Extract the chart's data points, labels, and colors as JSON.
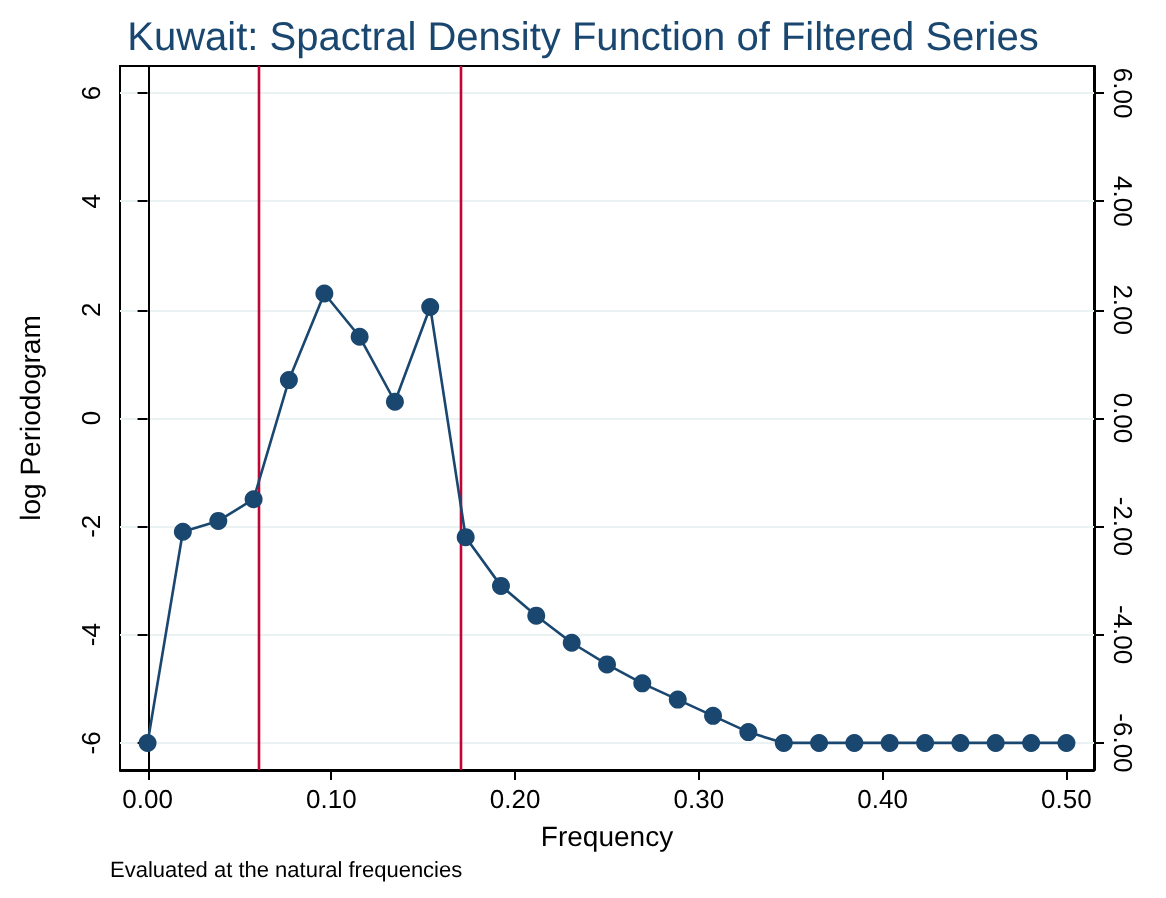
{
  "chart_data": {
    "type": "line",
    "title": "Kuwait: Spactral Density Function of Filtered Series",
    "xlabel": "Frequency",
    "ylabel": "log Periodogram",
    "annotations": [
      "Evaluated at the natural frequencies"
    ],
    "x": [
      0,
      0.0192,
      0.0385,
      0.0577,
      0.0769,
      0.0962,
      0.1154,
      0.1346,
      0.1538,
      0.1731,
      0.1923,
      0.2115,
      0.2308,
      0.25,
      0.2692,
      0.2885,
      0.3077,
      0.3269,
      0.3462,
      0.3654,
      0.3846,
      0.4038,
      0.4231,
      0.4423,
      0.4615,
      0.4808,
      0.5
    ],
    "series": [
      {
        "color": "#1a476f",
        "values": [
          -6.0,
          -2.1,
          -1.9,
          -1.5,
          0.7,
          2.3,
          1.5,
          0.3,
          2.05,
          -2.2,
          -3.1,
          -3.65,
          -4.15,
          -4.55,
          -4.9,
          -5.2,
          -5.5,
          -5.8,
          -6.0,
          -6.0,
          -6.0,
          -6.0,
          -6.0,
          -6.0,
          -6.0,
          -6.0,
          -6.0
        ]
      }
    ],
    "xlim": [
      -0.015,
      0.515
    ],
    "xticks": [
      {
        "value": 0,
        "label": "0.00"
      },
      {
        "value": 0.1,
        "label": "0.10"
      },
      {
        "value": 0.2,
        "label": "0.20"
      },
      {
        "value": 0.3,
        "label": "0.30"
      },
      {
        "value": 0.4,
        "label": "0.40"
      },
      {
        "value": 0.5,
        "label": "0.50"
      }
    ],
    "ylim": [
      -6.5,
      6.5
    ],
    "yticks": [
      -6,
      -4,
      -2,
      0,
      2,
      4,
      6
    ],
    "y2lim": [
      -6.5,
      6.5
    ],
    "y2ticks": [
      {
        "value": -6,
        "label": "-6.00"
      },
      {
        "value": -4,
        "label": "-4.00"
      },
      {
        "value": -2,
        "label": "-2.00"
      },
      {
        "value": 0,
        "label": "0.00"
      },
      {
        "value": 2,
        "label": "2.00"
      },
      {
        "value": 4,
        "label": "4.00"
      },
      {
        "value": 6,
        "label": "6.00"
      }
    ],
    "ref_lines": [
      {
        "axis": "x",
        "value": 0.06,
        "color": "#c10534"
      },
      {
        "axis": "x",
        "value": 0.17,
        "color": "#c10534"
      }
    ],
    "grid": "y",
    "marker": "circle",
    "line_style": "solid"
  }
}
